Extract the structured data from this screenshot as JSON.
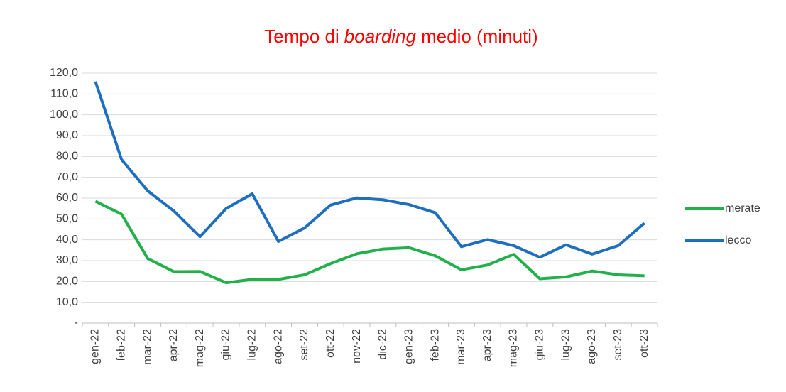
{
  "chart_data": {
    "type": "line",
    "title_runs": [
      {
        "text": "Tempo di"
      },
      {
        "text": "boarding",
        "italic": true
      },
      {
        "text": "medio (minuti)"
      }
    ],
    "title_color": "#ff0000",
    "categories": [
      "gen-22",
      "feb-22",
      "mar-22",
      "apr-22",
      "mag-22",
      "giu-22",
      "lug-22",
      "ago-22",
      "set-22",
      "ott-22",
      "nov-22",
      "dic-22",
      "gen-23",
      "feb-23",
      "mar-23",
      "apr-23",
      "mag-23",
      "giu-23",
      "lug-23",
      "ago-23",
      "set-23",
      "ott-23"
    ],
    "series": [
      {
        "name": "merate",
        "color": "#22b04b",
        "values": [
          58.5,
          52.3,
          31,
          24.7,
          24.8,
          19.4,
          21,
          21,
          23.2,
          28.6,
          33.3,
          35.6,
          36.2,
          32.3,
          25.6,
          27.9,
          33,
          21.3,
          22.2,
          25,
          23.2,
          22.7
        ]
      },
      {
        "name": "lecco",
        "color": "#1f6fbf",
        "values": [
          116,
          78.5,
          63.5,
          53.8,
          41.5,
          55,
          62.1,
          39.2,
          45.7,
          56.7,
          60.1,
          59.2,
          56.9,
          53,
          36.7,
          40.1,
          37.2,
          31.6,
          37.6,
          33.1,
          37.2,
          48
        ]
      }
    ],
    "ylim": [
      0,
      120
    ],
    "yticks": [
      {
        "value": 0,
        "label": "-"
      },
      {
        "value": 10,
        "label": "10,0"
      },
      {
        "value": 20,
        "label": "20,0"
      },
      {
        "value": 30,
        "label": "30,0"
      },
      {
        "value": 40,
        "label": "40,0"
      },
      {
        "value": 50,
        "label": "50,0"
      },
      {
        "value": 60,
        "label": "60,0"
      },
      {
        "value": 70,
        "label": "70,0"
      },
      {
        "value": 80,
        "label": "80,0"
      },
      {
        "value": 90,
        "label": "90,0"
      },
      {
        "value": 100,
        "label": "100,0"
      },
      {
        "value": 110,
        "label": "110,0"
      },
      {
        "value": 120,
        "label": "120,0"
      }
    ],
    "grid": true,
    "legend": "right"
  }
}
